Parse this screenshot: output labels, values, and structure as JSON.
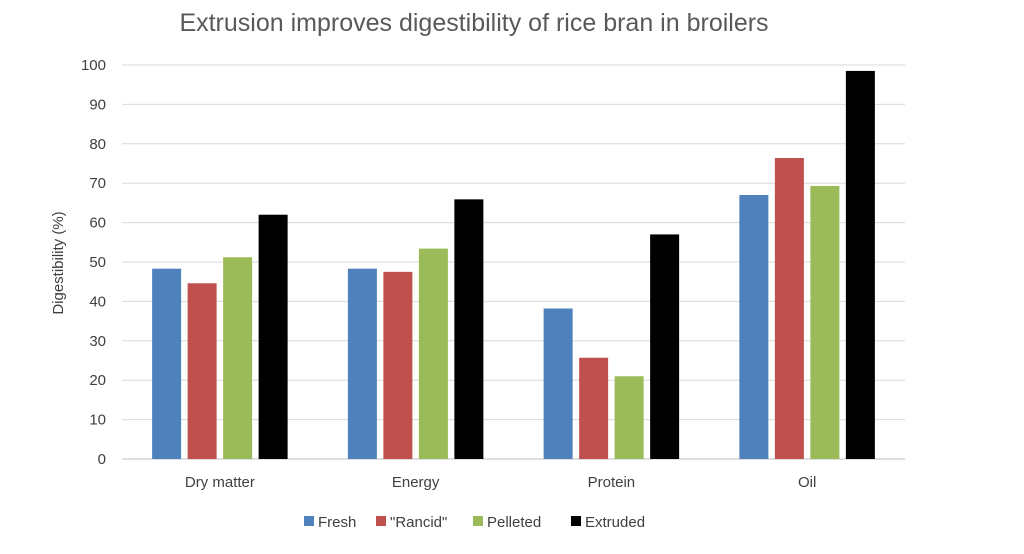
{
  "chart_data": {
    "type": "bar",
    "title": "Extrusion improves digestibility of rice bran in broilers",
    "xlabel": "",
    "ylabel": "Digestibility (%)",
    "ylim": [
      0,
      100
    ],
    "yticks": [
      0,
      10,
      20,
      30,
      40,
      50,
      60,
      70,
      80,
      90,
      100
    ],
    "categories": [
      "Dry matter",
      "Energy",
      "Protein",
      "Oil"
    ],
    "series": [
      {
        "name": "Fresh",
        "color": "#4f81bd",
        "values": [
          48.3,
          48.3,
          38.2,
          67.0
        ]
      },
      {
        "name": "\"Rancid\"",
        "color": "#c0504d",
        "values": [
          44.6,
          47.5,
          25.7,
          76.4
        ]
      },
      {
        "name": "Pelleted",
        "color": "#9bbb59",
        "values": [
          51.2,
          53.4,
          21.0,
          69.3
        ]
      },
      {
        "name": "Extruded",
        "color": "#000000",
        "values": [
          62.0,
          65.9,
          57.0,
          98.5
        ]
      }
    ],
    "grid": true,
    "legend_position": "bottom"
  }
}
